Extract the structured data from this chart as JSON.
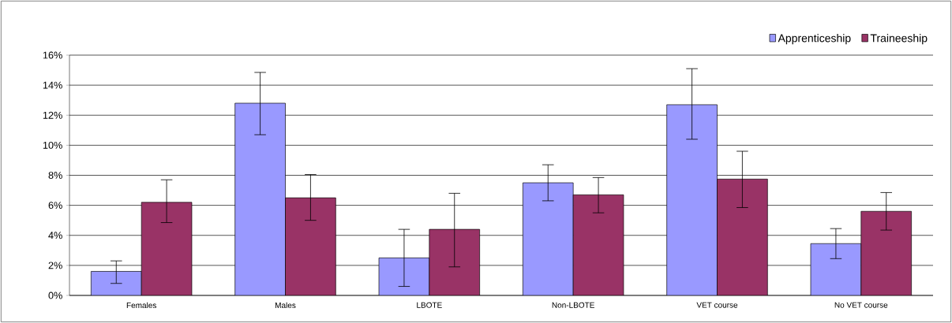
{
  "chart_data": {
    "type": "bar",
    "categories": [
      "Females",
      "Males",
      "LBOTE",
      "Non-LBOTE",
      "VET course",
      "No VET course"
    ],
    "series": [
      {
        "name": "Apprenticeship",
        "color": "#9999ff",
        "values": [
          1.6,
          12.8,
          2.5,
          7.5,
          12.7,
          3.45
        ],
        "errors": [
          [
            0.8,
            2.3
          ],
          [
            10.7,
            14.85
          ],
          [
            0.6,
            4.4
          ],
          [
            6.3,
            8.7
          ],
          [
            10.4,
            15.1
          ],
          [
            2.45,
            4.45
          ]
        ]
      },
      {
        "name": "Traineeship",
        "color": "#993366",
        "values": [
          6.2,
          6.5,
          4.4,
          6.7,
          7.75,
          5.6
        ],
        "errors": [
          [
            4.85,
            7.7
          ],
          [
            5.0,
            8.05
          ],
          [
            1.9,
            6.8
          ],
          [
            5.5,
            7.85
          ],
          [
            5.85,
            9.6
          ],
          [
            4.35,
            6.85
          ]
        ]
      }
    ],
    "ylim": [
      0,
      16
    ],
    "yticks": [
      {
        "value": 0,
        "label": "0%"
      },
      {
        "value": 2,
        "label": "2%"
      },
      {
        "value": 4,
        "label": "4%"
      },
      {
        "value": 6,
        "label": "6%"
      },
      {
        "value": 8,
        "label": "8%"
      },
      {
        "value": 10,
        "label": "10%"
      },
      {
        "value": 12,
        "label": "12%"
      },
      {
        "value": 14,
        "label": "14%"
      },
      {
        "value": 16,
        "label": "16%"
      }
    ],
    "grid": "y",
    "legend": "top right"
  }
}
